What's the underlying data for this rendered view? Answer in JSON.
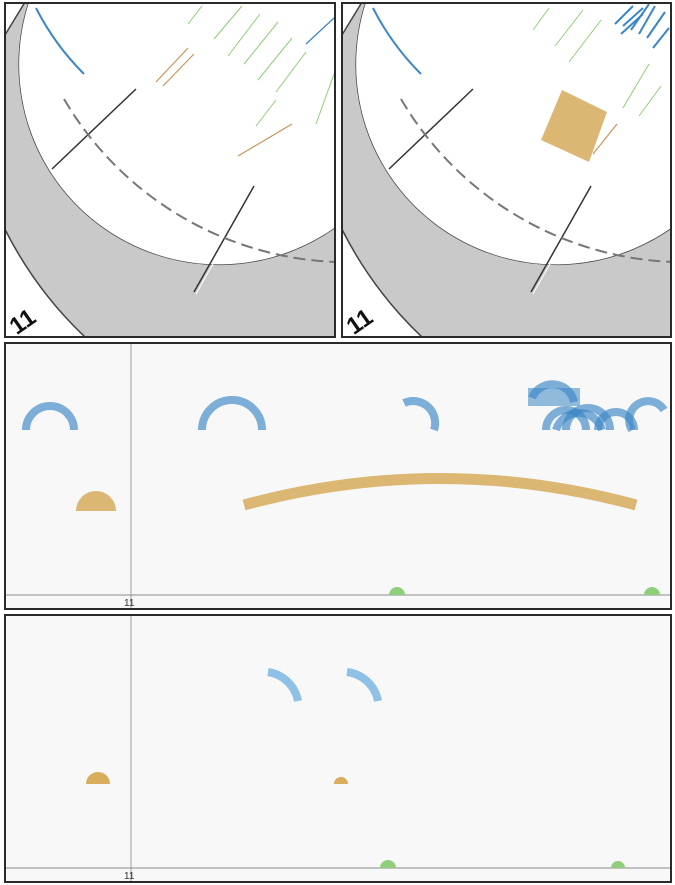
{
  "top_left": {
    "chromosome_label": "11"
  },
  "top_right": {
    "chromosome_label": "11"
  },
  "middle": {
    "axis_label": "11"
  },
  "bottom": {
    "axis_label": "11"
  },
  "colors": {
    "blue": "#3b86c6",
    "light_blue": "#8fc0e6",
    "tan": "#dcb774",
    "green": "#8fce7a",
    "band_red": "#c8412a",
    "track_gray": "#c9c9c9"
  }
}
